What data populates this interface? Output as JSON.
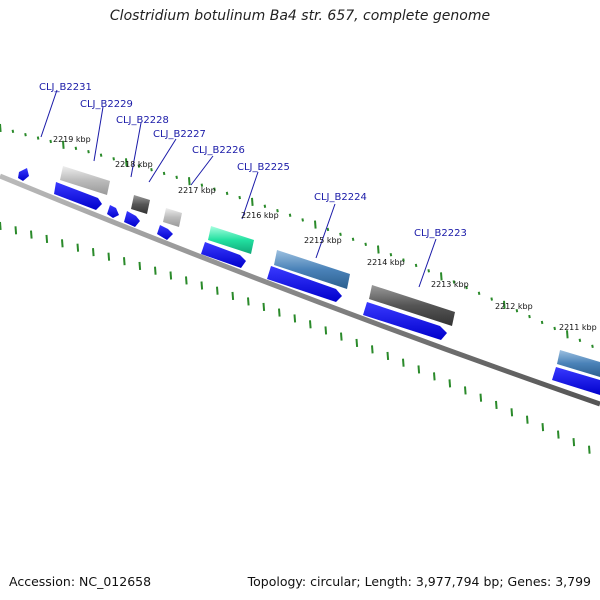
{
  "title": "Clostridium botulinum Ba4 str. 657, complete genome",
  "accession": "Accession: NC_012658",
  "summary": "Topology: circular; Length: 3,977,794 bp; Genes: 3,799",
  "colors": {
    "backbone": "#777777",
    "cds": "#1a1ae6",
    "label": "#1a1aa8",
    "tick": "#2a8a2a"
  },
  "kbp_labels": [
    "2219 kbp",
    "2218 kbp",
    "2217 kbp",
    "2216 kbp",
    "2215 kbp",
    "2214 kbp",
    "2213 kbp",
    "2212 kbp",
    "2211 kbp"
  ],
  "gene_labels": [
    "CLJ_B2231",
    "CLJ_B2229",
    "CLJ_B2228",
    "CLJ_B2227",
    "CLJ_B2226",
    "CLJ_B2225",
    "CLJ_B2224",
    "CLJ_B2223"
  ]
}
